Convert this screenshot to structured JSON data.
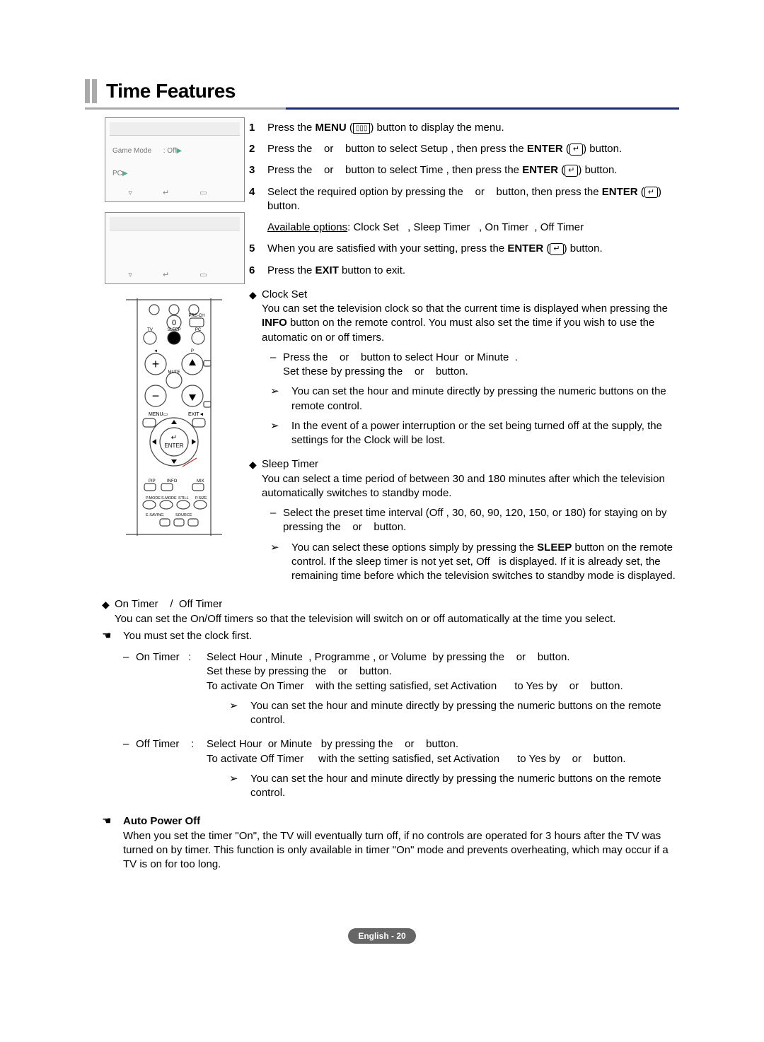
{
  "title": "Time Features",
  "screenshot1_rows": [
    [
      "Game Mode",
      ": Off"
    ],
    [
      "PC",
      ""
    ]
  ],
  "steps": [
    {
      "num": "1",
      "html": "Press the <b>MENU</b> (<span class='menu-icon'>▯▯▯</span>) button to display the menu."
    },
    {
      "num": "2",
      "html": "Press the &nbsp;&nbsp; or &nbsp;&nbsp; button to select Setup , then press the <b>ENTER</b> (<span class='enter-icon'>↵</span>) button."
    },
    {
      "num": "3",
      "html": "Press the &nbsp;&nbsp; or &nbsp;&nbsp; button to select Time , then press the <b>ENTER</b> (<span class='enter-icon'>↵</span>) button."
    },
    {
      "num": "4",
      "html": "Select the required option by pressing the &nbsp;&nbsp; or &nbsp;&nbsp; button, then press the <b>ENTER</b> (<span class='enter-icon'>↵</span>) button.",
      "html2": "<span class='underline'>Available options</span>: Clock Set &nbsp;&nbsp;, Sleep Timer &nbsp;&nbsp;, On Timer &nbsp;, Off Timer"
    },
    {
      "num": "5",
      "html": "When you are satisfied with your setting, press the <b>ENTER</b> (<span class='enter-icon'>↵</span>) button."
    },
    {
      "num": "6",
      "html": "Press the <b>EXIT</b> button to exit."
    }
  ],
  "clock": {
    "title": "Clock Set",
    "body": "You can set the television clock so that the current time is displayed when pressing the <b>INFO</b> button on the remote control. You must also set the time if you wish to use the automatic on or off timers.",
    "dash": "Press the &nbsp;&nbsp; or &nbsp;&nbsp; button to select Hour &nbsp;or Minute &nbsp;.<br>Set these by pressing the &nbsp;&nbsp; or &nbsp;&nbsp; button.",
    "arrow1": "You can set the hour and minute directly by pressing the numeric buttons on the remote control.",
    "arrow2": "In the event of a power interruption or the set being turned off at the supply, the settings for the Clock will be lost."
  },
  "sleep": {
    "title": "Sleep Timer",
    "body": "You can select a time period of between 30 and 180 minutes after which the television automatically switches to standby mode.",
    "dash": "Select the preset time interval (Off , 30, 60, 90, 120, 150, or 180) for staying on by pressing the &nbsp;&nbsp; or &nbsp;&nbsp; button.",
    "arrow": "You can select these options simply by pressing the <b>SLEEP</b> button on the remote control. If the sleep timer is not yet set, Off &nbsp; is displayed. If it is already set, the remaining time before which the television switches to standby mode is displayed."
  },
  "onoff": {
    "title": "On Timer &nbsp;&nbsp; / &nbsp;Off Timer",
    "body": "You can set the On/Off timers so that the television will switch on or off automatically at the time you select.",
    "hand": "You must set the clock first.",
    "on_label": "On Timer &nbsp; : ",
    "on_body": "Select Hour , Minute &nbsp;, Programme , or Volume &nbsp;by pressing the &nbsp;&nbsp; or &nbsp;&nbsp; button.<br>Set these by pressing the &nbsp;&nbsp; or &nbsp;&nbsp; button.<br>To activate On Timer &nbsp;&nbsp; with the setting satisfied, set Activation &nbsp;&nbsp;&nbsp;&nbsp; to Yes by &nbsp;&nbsp; or &nbsp;&nbsp; button.",
    "on_arrow": "You can set the hour and minute directly by pressing the numeric buttons on the remote control.",
    "off_label": "Off Timer &nbsp;&nbsp; : ",
    "off_body": "Select Hour &nbsp;or Minute &nbsp; by pressing the &nbsp;&nbsp; or &nbsp;&nbsp; button.<br>To activate Off Timer &nbsp;&nbsp;&nbsp; with the setting satisfied, set Activation &nbsp;&nbsp;&nbsp;&nbsp; to Yes by &nbsp;&nbsp; or &nbsp;&nbsp; button.",
    "off_arrow": "You can set the hour and minute directly by pressing the numeric buttons on the remote control."
  },
  "auto": {
    "title": "Auto Power Off",
    "body": "When you set the timer \"On\", the TV will eventually turn off, if no controls are operated for 3 hours after the TV was turned on by timer. This function is only available in timer \"On\" mode and prevents overheating, which may occur if a TV is on for too long."
  },
  "footer": "English - 20"
}
